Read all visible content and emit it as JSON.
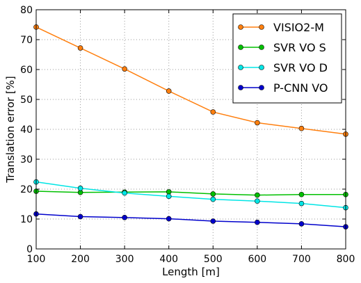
{
  "chart_data": {
    "type": "line",
    "xlabel": "Length [m]",
    "ylabel": "Translation error [%]",
    "xlim": [
      100,
      800
    ],
    "ylim": [
      0,
      80
    ],
    "xticks": [
      100,
      200,
      300,
      400,
      500,
      600,
      700,
      800
    ],
    "yticks": [
      0,
      10,
      20,
      30,
      40,
      50,
      60,
      70,
      80
    ],
    "grid": true,
    "legend_position": "top-right",
    "x": [
      100,
      200,
      300,
      400,
      500,
      600,
      700,
      800
    ],
    "series": [
      {
        "name": "VISIO2-M",
        "color": "#ff7f0e",
        "values": [
          74.2,
          67.2,
          60.2,
          52.8,
          45.8,
          42.2,
          40.3,
          38.4
        ]
      },
      {
        "name": "SVR VO S",
        "color": "#00c000",
        "values": [
          19.3,
          18.9,
          19.0,
          19.1,
          18.4,
          18.0,
          18.2,
          18.2
        ]
      },
      {
        "name": "SVR VO D",
        "color": "#00e5e5",
        "values": [
          22.4,
          20.3,
          18.7,
          17.6,
          16.6,
          16.0,
          15.2,
          13.8
        ]
      },
      {
        "name": "P-CNN VO",
        "color": "#0000cc",
        "values": [
          11.7,
          10.8,
          10.5,
          10.1,
          9.3,
          8.9,
          8.4,
          7.4
        ]
      }
    ]
  }
}
